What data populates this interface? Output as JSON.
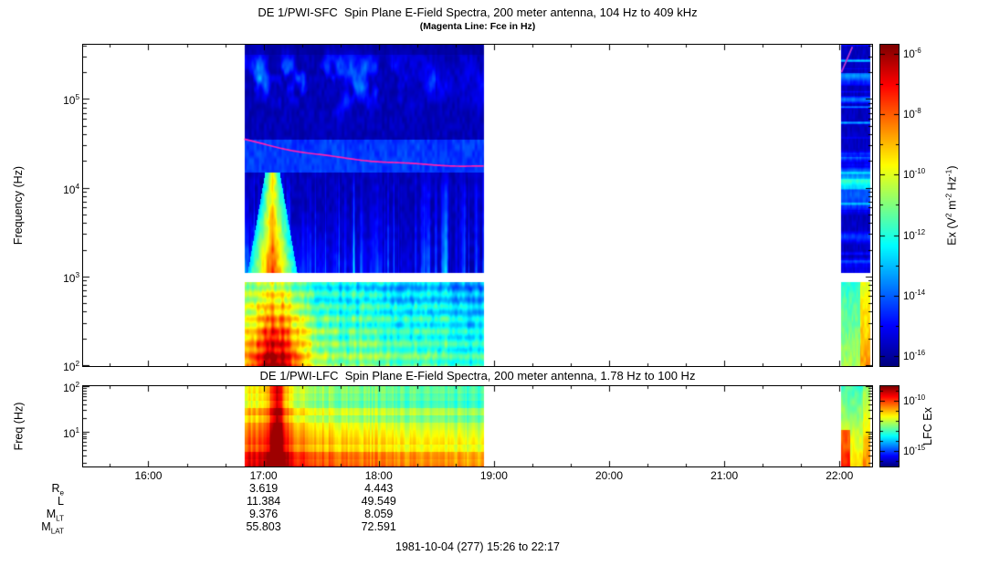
{
  "figure": {
    "footer": "1981-10-04 (277) 15:26 to 22:17"
  },
  "chart_data": [
    {
      "type": "heatmap",
      "subtype": "spectrogram",
      "title": "DE 1/PWI-SFC  Spin Plane E-Field Spectra, 200 meter antenna, 104 Hz to 409 kHz",
      "subtitle": "(Magenta Line: Fce in Hz)",
      "ylabel": "Frequency (Hz)",
      "y_scale": "log",
      "y_range_hz": [
        100,
        409000
      ],
      "y_tick_exponents": [
        2,
        3,
        4,
        5
      ],
      "x_start": "15:26",
      "x_end": "22:17",
      "x_ticks": [
        "16:00",
        "17:00",
        "18:00",
        "19:00",
        "20:00",
        "21:00",
        "22:00"
      ],
      "colorbar": {
        "label_parts": [
          {
            "t": "Ex (V"
          },
          {
            "sup": "2"
          },
          {
            "t": " m"
          },
          {
            "sup": "-2"
          },
          {
            "t": " Hz"
          },
          {
            "sup": "-1"
          },
          {
            "t": ")"
          }
        ],
        "tick_exponents": [
          -6,
          -8,
          -10,
          -12,
          -14,
          -16
        ],
        "minor_exponents": [
          -7,
          -9,
          -11,
          -13,
          -15
        ],
        "top_exp": -5.7,
        "bottom_exp": -16.3
      },
      "segments": [
        {
          "start": "16:50",
          "end": "18:55",
          "kind": "main"
        },
        {
          "start": "22:01",
          "end": "22:16",
          "kind": "late"
        }
      ],
      "white_gap_log_hz": [
        2.94,
        3.04
      ],
      "fce_line": {
        "color": "#ff1fb4",
        "start_hz": 35000,
        "end_hz": 16500
      },
      "fce_late": {
        "color": "#c03ad0",
        "start_hz": 200000
      },
      "features": [
        "funnel-shaped broadband burst 16:55-17:30 peaking below 10 kHz",
        "auroral hiss / AKR cyan patches 60-300 kHz from 16:50 to about 18:10",
        "solid blue continuum band near 15-35 kHz containing the magenta Fce trace",
        "intense 100-900 Hz emission, strongest (red-orange) 16:55-17:30, fading to green by 18:55",
        "narrow vertical green striations 1-15 kHz through end of segment",
        "second short data interval 22:01-22:16 with banded emissions",
        "white instrument gap near 1 kHz between receiver bands"
      ]
    },
    {
      "type": "heatmap",
      "subtype": "spectrogram",
      "title": "DE 1/PWI-LFC  Spin Plane E-Field Spectra, 200 meter antenna, 1.78 Hz to 100 Hz",
      "ylabel": "Freq (Hz)",
      "y_scale": "log",
      "y_range_hz": [
        1.78,
        100
      ],
      "y_tick_exponents": [
        1,
        2
      ],
      "colorbar": {
        "label_parts": [
          {
            "t": "LFC Ex"
          }
        ],
        "tick_exponents": [
          -10,
          -15
        ],
        "minor_exponents": [
          -9,
          -11,
          -12,
          -13,
          -14,
          -16
        ],
        "top_exp": -8.5,
        "bottom_exp": -16.5
      },
      "segments": [
        {
          "start": "16:50",
          "end": "18:55",
          "kind": "main"
        },
        {
          "start": "22:01",
          "end": "22:16",
          "kind": "late"
        }
      ],
      "features": [
        "broadband yellow/orange emission, reddest below 10 Hz",
        "saturated red column near 17:03-17:15 across all channels",
        "intensity fades slowly toward 18:55",
        "second short data interval 22:01-22:16, green/yellow"
      ]
    }
  ],
  "ephemeris": {
    "value_times": [
      "17:00",
      "18:00"
    ],
    "rows": [
      {
        "label": {
          "main": "R",
          "sub": "e"
        },
        "values": [
          "3.619",
          "4.443"
        ]
      },
      {
        "label": {
          "main": "L",
          "sub": ""
        },
        "values": [
          "11.384",
          "49.549"
        ]
      },
      {
        "label": {
          "main": "M",
          "sub": "LT"
        },
        "values": [
          "9.376",
          "8.059"
        ]
      },
      {
        "label": {
          "main": "M",
          "sub": "LAT"
        },
        "values": [
          "55.803",
          "72.591"
        ]
      }
    ]
  }
}
